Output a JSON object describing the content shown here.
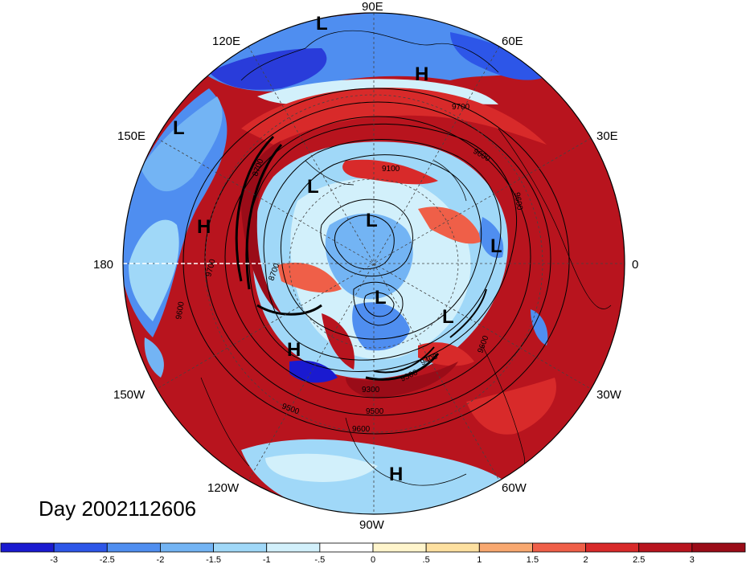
{
  "title": "Day 2002112606",
  "lon_labels": [
    "90E",
    "60E",
    "30E",
    "0",
    "30W",
    "60W",
    "90W",
    "120W",
    "150W",
    "180",
    "150E",
    "120E"
  ],
  "contour_labels": [
    "9700",
    "9600",
    "9600",
    "9600",
    "9600",
    "9500",
    "9500",
    "9400",
    "9300",
    "9300",
    "9100",
    "8700",
    "8700",
    "9700",
    "9600"
  ],
  "pressure_labels": [
    "L",
    "L",
    "L",
    "L",
    "L",
    "L",
    "L",
    "H",
    "H",
    "H",
    "H"
  ],
  "colorbar": {
    "ticks": [
      "-3",
      "-2.5",
      "-2",
      "-1.5",
      "-1",
      "-.5",
      "0",
      ".5",
      "1",
      "1.5",
      "2",
      "2.5",
      "3"
    ],
    "colors": [
      "#1a1ad0",
      "#2d56e8",
      "#4f8ef0",
      "#73b4f4",
      "#a0d8f8",
      "#d2f0fb",
      "#ffffff",
      "#fff5cc",
      "#fde0a0",
      "#f8a870",
      "#ef5f48",
      "#d82a2a",
      "#b8141e",
      "#9a0c18"
    ]
  }
}
